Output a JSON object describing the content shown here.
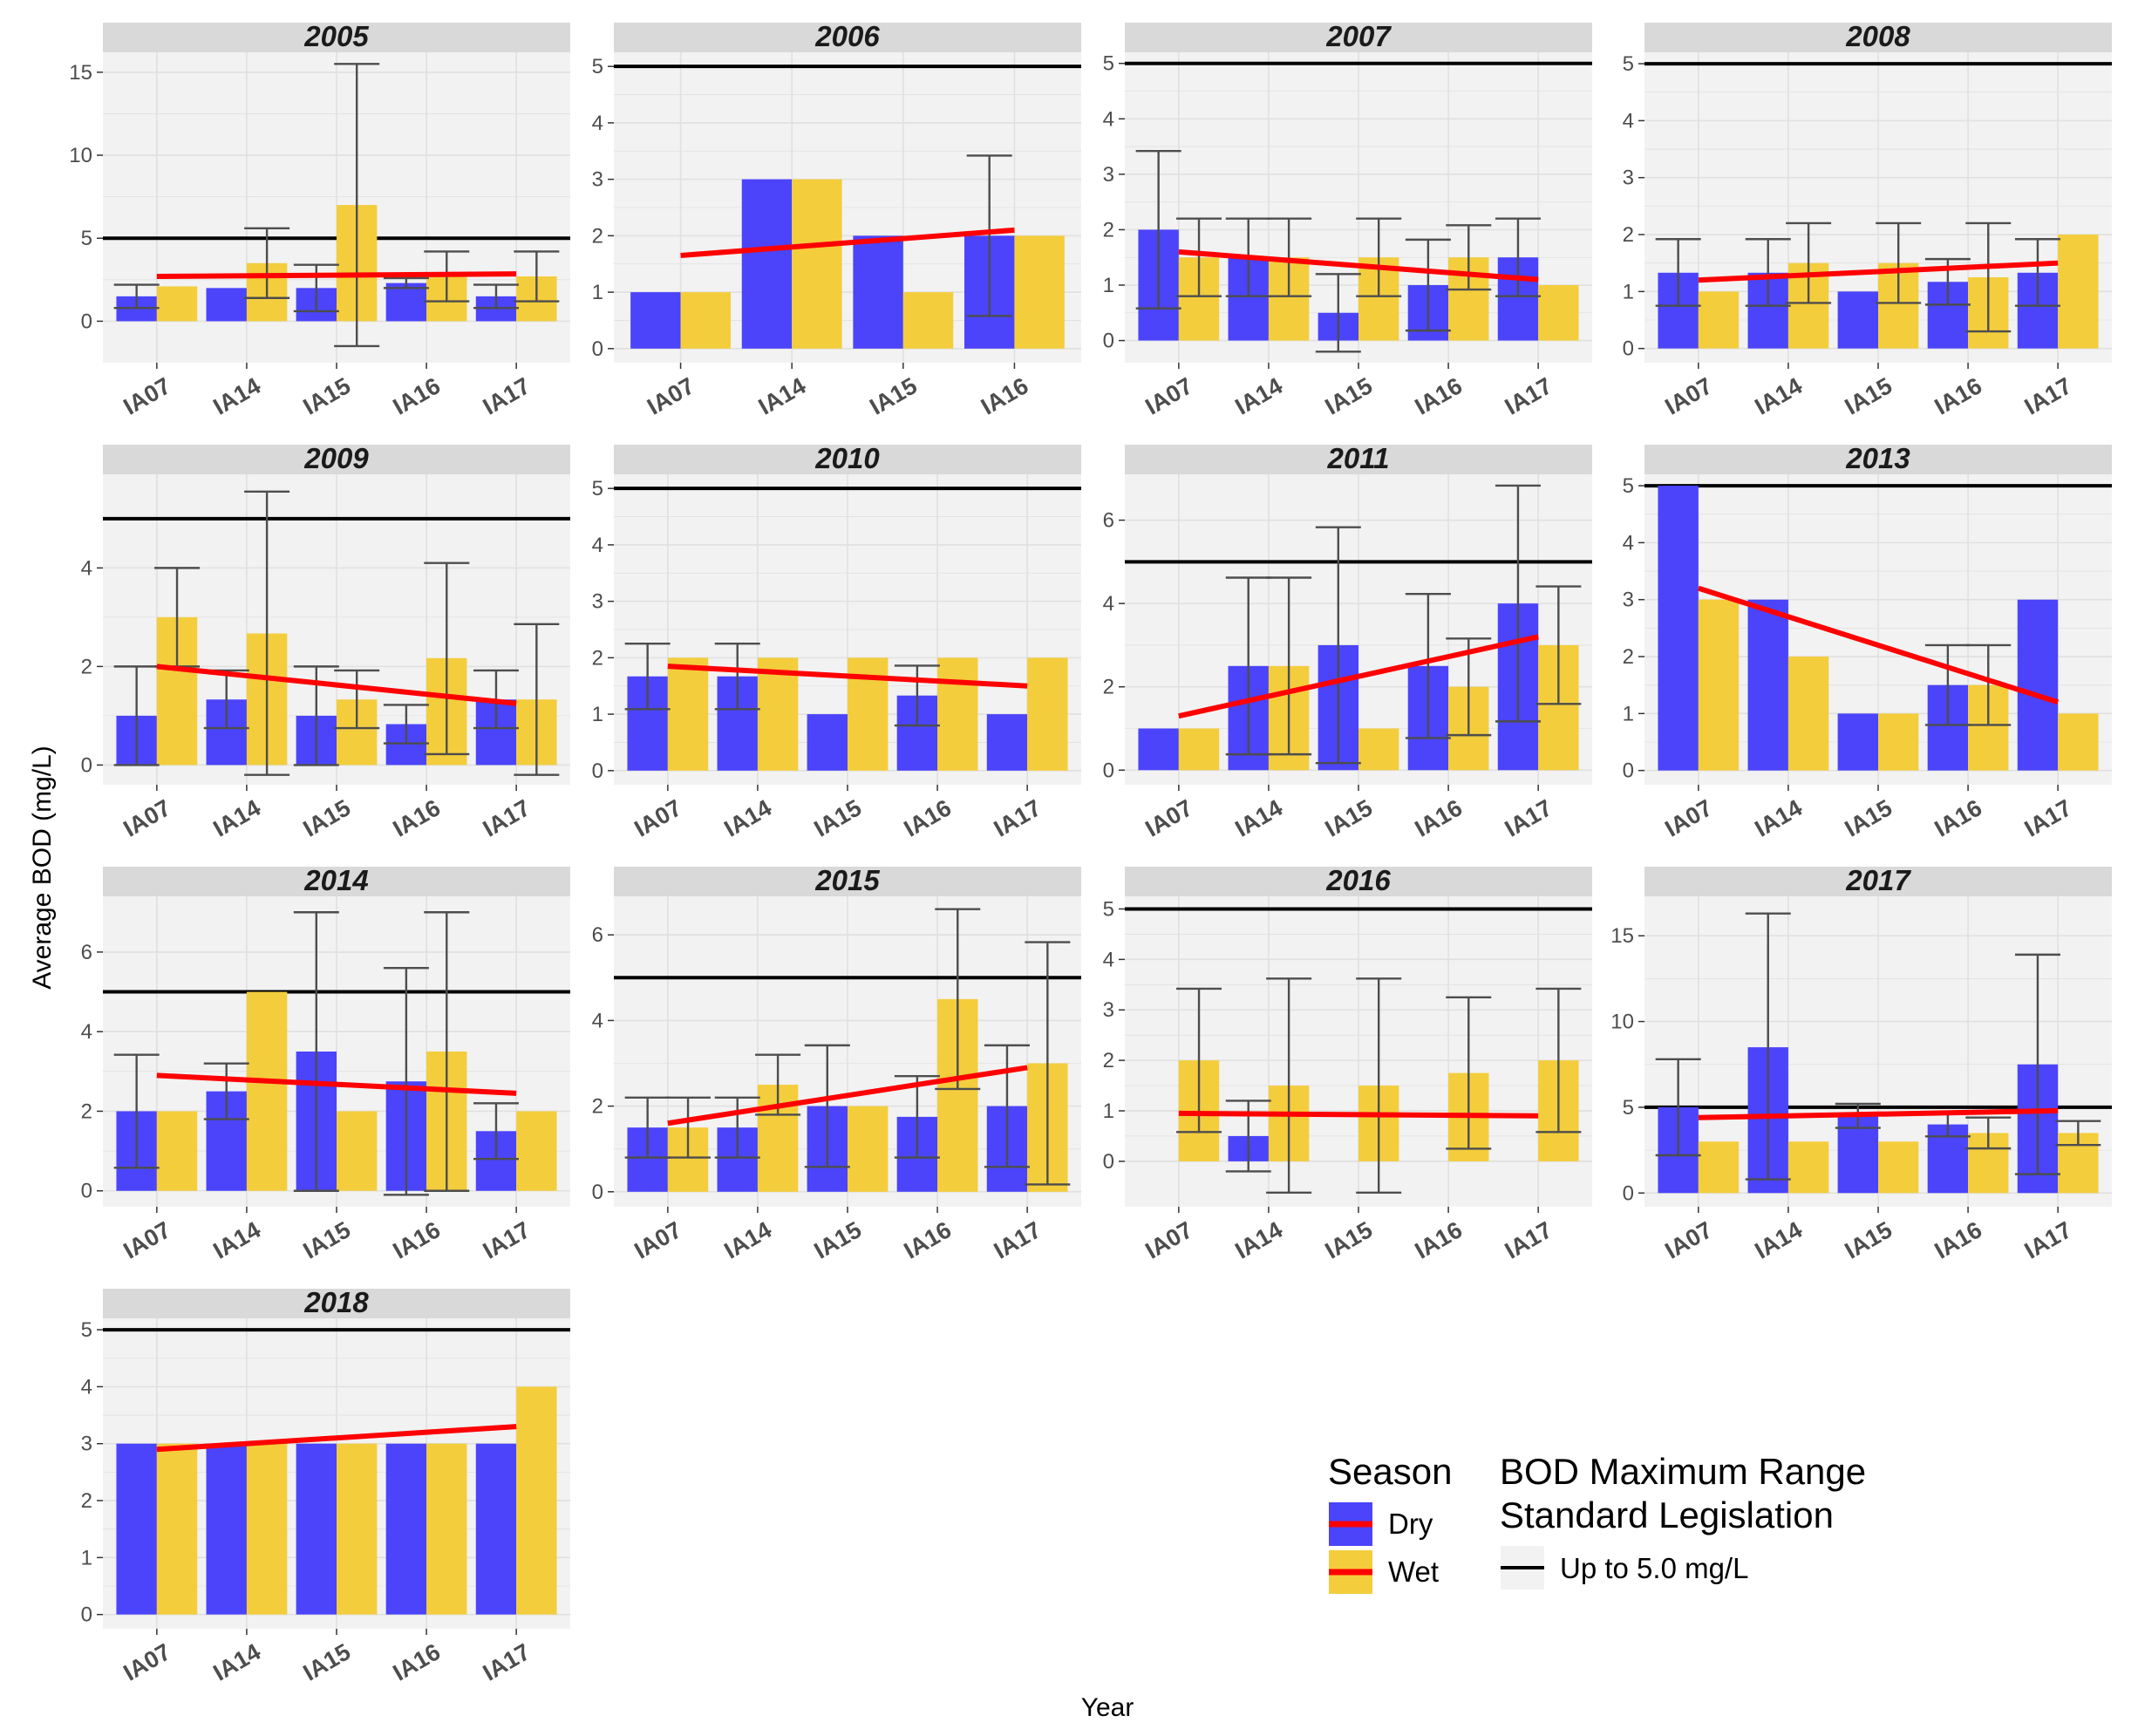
{
  "chart_data": {
    "type": "bar",
    "xlabel": "Year",
    "ylabel": "Average BOD (mg/L)",
    "reference_line": 5,
    "colors": {
      "dry": "#4B44FB",
      "wet": "#F3CD3C",
      "trend": "#FF0000",
      "reference": "#000000",
      "panel_bg": "#F2F2F2",
      "strip_bg": "#D9D9D9",
      "grid": "#E0E0E0",
      "errorbar": "#4D4D4D"
    },
    "legend": {
      "season_title": "Season",
      "dry_label": "Dry",
      "wet_label": "Wet",
      "bod_title_line1": "BOD Maximum Range",
      "bod_title_line2": "Standard Legislation",
      "bod_label": "Up to 5.0 mg/L"
    },
    "panels": [
      {
        "title": "2005",
        "ylim": [
          -2.5,
          16.2
        ],
        "yticks": [
          "0",
          "5",
          "10",
          "15"
        ],
        "categories": [
          "IA07",
          "IA14",
          "IA15",
          "IA16",
          "IA17"
        ],
        "dry": [
          1.5,
          2.0,
          2.0,
          2.3,
          1.5
        ],
        "wet": [
          2.1,
          3.5,
          7.0,
          2.7,
          2.7
        ],
        "dry_err": [
          [
            0.8,
            2.2
          ],
          null,
          [
            0.6,
            3.4
          ],
          [
            2.0,
            2.6
          ],
          [
            0.8,
            2.2
          ]
        ],
        "wet_err": [
          null,
          [
            1.4,
            5.6
          ],
          [
            -1.5,
            15.5
          ],
          [
            1.2,
            4.2
          ],
          [
            1.2,
            4.2
          ]
        ],
        "trend": [
          2.7,
          2.85
        ]
      },
      {
        "title": "2006",
        "ylim": [
          -0.25,
          5.25
        ],
        "yticks": [
          "0",
          "1",
          "2",
          "3",
          "4",
          "5"
        ],
        "categories": [
          "IA07",
          "IA14",
          "IA15",
          "IA16"
        ],
        "dry": [
          1.0,
          3.0,
          2.0,
          2.0
        ],
        "wet": [
          1.0,
          3.0,
          1.0,
          2.0
        ],
        "dry_err": [
          null,
          null,
          null,
          [
            0.58,
            3.42
          ]
        ],
        "wet_err": [
          null,
          null,
          null,
          null
        ],
        "trend": [
          1.65,
          2.1
        ]
      },
      {
        "title": "2007",
        "ylim": [
          -0.4,
          5.2
        ],
        "yticks": [
          "0",
          "1",
          "2",
          "3",
          "4",
          "5"
        ],
        "categories": [
          "IA07",
          "IA14",
          "IA15",
          "IA16",
          "IA17"
        ],
        "dry": [
          2.0,
          1.5,
          0.5,
          1.0,
          1.5
        ],
        "wet": [
          1.5,
          1.5,
          1.5,
          1.5,
          1.0
        ],
        "dry_err": [
          [
            0.58,
            3.42
          ],
          [
            0.8,
            2.2
          ],
          [
            -0.2,
            1.2
          ],
          [
            0.18,
            1.82
          ],
          [
            0.8,
            2.2
          ]
        ],
        "wet_err": [
          [
            0.8,
            2.2
          ],
          [
            0.8,
            2.2
          ],
          [
            0.8,
            2.2
          ],
          [
            0.92,
            2.08
          ],
          null
        ],
        "trend": [
          1.6,
          1.1
        ]
      },
      {
        "title": "2008",
        "ylim": [
          -0.25,
          5.2
        ],
        "yticks": [
          "0",
          "1",
          "2",
          "3",
          "4",
          "5"
        ],
        "categories": [
          "IA07",
          "IA14",
          "IA15",
          "IA16",
          "IA17"
        ],
        "dry": [
          1.33,
          1.33,
          1.0,
          1.17,
          1.33
        ],
        "wet": [
          1.0,
          1.5,
          1.5,
          1.25,
          2.0
        ],
        "dry_err": [
          [
            0.75,
            1.92
          ],
          [
            0.75,
            1.92
          ],
          null,
          [
            0.77,
            1.57
          ],
          [
            0.75,
            1.92
          ]
        ],
        "wet_err": [
          null,
          [
            0.8,
            2.2
          ],
          [
            0.8,
            2.2
          ],
          [
            0.3,
            2.2
          ],
          null
        ],
        "trend": [
          1.2,
          1.5
        ]
      },
      {
        "title": "2009",
        "ylim": [
          -0.4,
          5.9
        ],
        "yticks": [
          "0",
          "2",
          "4"
        ],
        "categories": [
          "IA07",
          "IA14",
          "IA15",
          "IA16",
          "IA17"
        ],
        "dry": [
          1.0,
          1.33,
          1.0,
          0.83,
          1.33
        ],
        "wet": [
          3.0,
          2.67,
          1.33,
          2.17,
          1.33
        ],
        "dry_err": [
          [
            0,
            2
          ],
          [
            0.75,
            1.92
          ],
          [
            0,
            2
          ],
          [
            0.44,
            1.22
          ],
          [
            0.75,
            1.92
          ]
        ],
        "wet_err": [
          [
            2,
            4
          ],
          [
            -0.2,
            5.55
          ],
          [
            0.75,
            1.92
          ],
          [
            0.22,
            4.1
          ],
          [
            -0.2,
            2.86
          ]
        ],
        "trend": [
          2.0,
          1.25
        ]
      },
      {
        "title": "2010",
        "ylim": [
          -0.25,
          5.25
        ],
        "yticks": [
          "0",
          "1",
          "2",
          "3",
          "4",
          "5"
        ],
        "categories": [
          "IA07",
          "IA14",
          "IA15",
          "IA16",
          "IA17"
        ],
        "dry": [
          1.67,
          1.67,
          1.0,
          1.33,
          1.0
        ],
        "wet": [
          2.0,
          2.0,
          2.0,
          2.0,
          2.0
        ],
        "dry_err": [
          [
            1.09,
            2.25
          ],
          [
            1.09,
            2.25
          ],
          null,
          [
            0.8,
            1.86
          ],
          null
        ],
        "wet_err": [
          null,
          null,
          null,
          null,
          null
        ],
        "trend": [
          1.85,
          1.5
        ]
      },
      {
        "title": "2011",
        "ylim": [
          -0.35,
          7.1
        ],
        "yticks": [
          "0",
          "2",
          "4",
          "6"
        ],
        "categories": [
          "IA07",
          "IA14",
          "IA15",
          "IA16",
          "IA17"
        ],
        "dry": [
          1.0,
          2.5,
          3.0,
          2.5,
          4.0
        ],
        "wet": [
          1.0,
          2.5,
          1.0,
          2.0,
          3.0
        ],
        "dry_err": [
          null,
          [
            0.38,
            4.62
          ],
          [
            0.17,
            5.83
          ],
          [
            0.77,
            4.23
          ],
          [
            1.17,
            6.83
          ]
        ],
        "wet_err": [
          null,
          [
            0.38,
            4.62
          ],
          null,
          [
            0.84,
            3.16
          ],
          [
            1.59,
            4.41
          ]
        ],
        "trend": [
          1.3,
          3.2
        ]
      },
      {
        "title": "2013",
        "ylim": [
          -0.25,
          5.2
        ],
        "yticks": [
          "0",
          "1",
          "2",
          "3",
          "4",
          "5"
        ],
        "categories": [
          "IA07",
          "IA14",
          "IA15",
          "IA16",
          "IA17"
        ],
        "dry": [
          5.0,
          3.0,
          1.0,
          1.5,
          3.0
        ],
        "wet": [
          3.0,
          2.0,
          1.0,
          1.5,
          1.0
        ],
        "dry_err": [
          null,
          null,
          null,
          [
            0.8,
            2.2
          ],
          null
        ],
        "wet_err": [
          null,
          null,
          null,
          [
            0.8,
            2.2
          ],
          null
        ],
        "trend": [
          3.2,
          1.2
        ]
      },
      {
        "title": "2014",
        "ylim": [
          -0.4,
          7.4
        ],
        "yticks": [
          "0",
          "2",
          "4",
          "6"
        ],
        "categories": [
          "IA07",
          "IA14",
          "IA15",
          "IA16",
          "IA17"
        ],
        "dry": [
          2.0,
          2.5,
          3.5,
          2.75,
          1.5
        ],
        "wet": [
          2.0,
          5.0,
          2.0,
          3.5,
          2.0
        ],
        "dry_err": [
          [
            0.58,
            3.42
          ],
          [
            1.8,
            3.2
          ],
          [
            0,
            7
          ],
          [
            -0.1,
            5.6
          ],
          [
            0.8,
            2.2
          ]
        ],
        "wet_err": [
          null,
          null,
          null,
          [
            0,
            7
          ],
          null
        ],
        "trend": [
          2.9,
          2.45
        ]
      },
      {
        "title": "2015",
        "ylim": [
          -0.35,
          6.9
        ],
        "yticks": [
          "0",
          "2",
          "4",
          "6"
        ],
        "categories": [
          "IA07",
          "IA14",
          "IA15",
          "IA16",
          "IA17"
        ],
        "dry": [
          1.5,
          1.5,
          2.0,
          1.75,
          2.0
        ],
        "wet": [
          1.5,
          2.5,
          2.0,
          4.5,
          3.0
        ],
        "dry_err": [
          [
            0.8,
            2.2
          ],
          [
            0.8,
            2.2
          ],
          [
            0.58,
            3.42
          ],
          [
            0.8,
            2.7
          ],
          [
            0.58,
            3.42
          ]
        ],
        "wet_err": [
          [
            0.8,
            2.2
          ],
          [
            1.8,
            3.2
          ],
          null,
          [
            2.4,
            6.6
          ],
          [
            0.17,
            5.83
          ]
        ],
        "trend": [
          1.6,
          2.9
        ]
      },
      {
        "title": "2016",
        "ylim": [
          -0.9,
          5.25
        ],
        "yticks": [
          "0",
          "1",
          "2",
          "3",
          "4",
          "5"
        ],
        "categories": [
          "IA07",
          "IA14",
          "IA15",
          "IA16",
          "IA17"
        ],
        "dry": [
          0,
          0.5,
          0,
          0,
          0
        ],
        "wet": [
          2.0,
          1.5,
          1.5,
          1.75,
          2.0
        ],
        "dry_err": [
          null,
          [
            -0.2,
            1.2
          ],
          null,
          null,
          null
        ],
        "wet_err": [
          [
            0.58,
            3.42
          ],
          [
            -0.62,
            3.62
          ],
          [
            -0.62,
            3.62
          ],
          [
            0.25,
            3.25
          ],
          [
            0.58,
            3.42
          ]
        ],
        "trend": [
          0.95,
          0.9
        ]
      },
      {
        "title": "2017",
        "ylim": [
          -0.8,
          17.3
        ],
        "yticks": [
          "0",
          "5",
          "10",
          "15"
        ],
        "categories": [
          "IA07",
          "IA14",
          "IA15",
          "IA16",
          "IA17"
        ],
        "dry": [
          5.0,
          8.5,
          4.5,
          4.0,
          7.5
        ],
        "wet": [
          3.0,
          3.0,
          3.0,
          3.5,
          3.5
        ],
        "dry_err": [
          [
            2.2,
            7.8
          ],
          [
            0.8,
            16.3
          ],
          [
            3.8,
            5.2
          ],
          [
            3.3,
            4.7
          ],
          [
            1.1,
            13.9
          ]
        ],
        "wet_err": [
          null,
          null,
          null,
          [
            2.6,
            4.4
          ],
          [
            2.8,
            4.2
          ]
        ],
        "trend": [
          4.4,
          4.8
        ]
      },
      {
        "title": "2018",
        "ylim": [
          -0.25,
          5.2
        ],
        "yticks": [
          "0",
          "1",
          "2",
          "3",
          "4",
          "5"
        ],
        "categories": [
          "IA07",
          "IA14",
          "IA15",
          "IA16",
          "IA17"
        ],
        "dry": [
          3.0,
          3.0,
          3.0,
          3.0,
          3.0
        ],
        "wet": [
          3.0,
          3.0,
          3.0,
          3.0,
          4.0
        ],
        "dry_err": [
          null,
          null,
          null,
          null,
          null
        ],
        "wet_err": [
          null,
          null,
          null,
          null,
          null
        ],
        "trend": [
          2.9,
          3.3
        ]
      }
    ]
  }
}
